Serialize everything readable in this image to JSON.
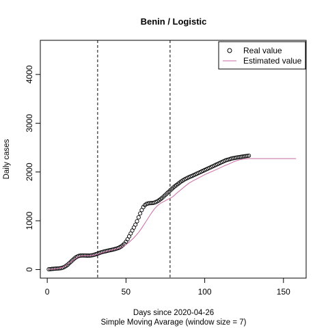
{
  "chart_data": {
    "type": "scatter",
    "title": "Benin / Logistic",
    "xlabel": "Days since 2020-04-26",
    "subtitle": "Simple Moving Avarage (window size = 7)",
    "ylabel": "Daily cases",
    "xlim": [
      -4.4,
      164.4
    ],
    "ylim": [
      -176,
      4700
    ],
    "x_ticks": [
      0,
      50,
      100,
      150
    ],
    "y_ticks": [
      0,
      1000,
      2000,
      3000,
      4000
    ],
    "vlines": [
      32,
      78
    ],
    "legend": {
      "position": "top-right",
      "entries": [
        {
          "label": "Real value",
          "symbol": "circle"
        },
        {
          "label": "Estimated value",
          "symbol": "line",
          "color": "#c86aa4"
        }
      ]
    },
    "series": [
      {
        "name": "Real value",
        "kind": "points",
        "x": [
          1,
          2,
          3,
          4,
          5,
          6,
          7,
          8,
          9,
          10,
          11,
          12,
          13,
          14,
          15,
          16,
          17,
          18,
          19,
          20,
          21,
          22,
          23,
          24,
          25,
          26,
          27,
          28,
          29,
          30,
          31,
          32,
          33,
          34,
          35,
          36,
          37,
          38,
          39,
          40,
          41,
          42,
          43,
          44,
          45,
          46,
          47,
          48,
          49,
          50,
          51,
          52,
          53,
          54,
          55,
          56,
          57,
          58,
          59,
          60,
          61,
          62,
          63,
          64,
          65,
          66,
          67,
          68,
          69,
          70,
          71,
          72,
          73,
          74,
          75,
          76,
          77,
          78,
          79,
          80,
          81,
          82,
          83,
          84,
          85,
          86,
          87,
          88,
          89,
          90,
          91,
          92,
          93,
          94,
          95,
          96,
          97,
          98,
          99,
          100,
          101,
          102,
          103,
          104,
          105,
          106,
          107,
          108,
          109,
          110,
          111,
          112,
          113,
          114,
          115,
          116,
          117,
          118,
          119,
          120,
          121,
          122,
          123,
          124,
          125,
          126,
          127,
          128
        ],
        "y": [
          5,
          8,
          12,
          15,
          18,
          20,
          22,
          25,
          30,
          40,
          55,
          75,
          100,
          130,
          160,
          190,
          220,
          245,
          265,
          278,
          285,
          288,
          288,
          287,
          286,
          285,
          286,
          290,
          295,
          305,
          315,
          325,
          338,
          350,
          360,
          368,
          375,
          382,
          390,
          398,
          405,
          412,
          420,
          430,
          440,
          455,
          475,
          500,
          530,
          570,
          620,
          680,
          740,
          800,
          860,
          920,
          990,
          1070,
          1150,
          1220,
          1280,
          1320,
          1345,
          1355,
          1360,
          1362,
          1365,
          1372,
          1385,
          1400,
          1420,
          1445,
          1470,
          1500,
          1530,
          1560,
          1590,
          1620,
          1650,
          1680,
          1705,
          1730,
          1755,
          1780,
          1805,
          1825,
          1845,
          1862,
          1878,
          1893,
          1907,
          1920,
          1935,
          1950,
          1965,
          1980,
          1995,
          2010,
          2025,
          2040,
          2055,
          2070,
          2085,
          2100,
          2115,
          2130,
          2145,
          2160,
          2175,
          2190,
          2205,
          2220,
          2235,
          2245,
          2255,
          2265,
          2275,
          2282,
          2288,
          2295,
          2300,
          2305,
          2310,
          2315,
          2320,
          2325,
          2330,
          2335
        ]
      },
      {
        "name": "Estimated value",
        "kind": "line",
        "color": "#c86aa4",
        "x": [
          1,
          5,
          10,
          15,
          18,
          20,
          22,
          25,
          28,
          30,
          32,
          35,
          38,
          40,
          42,
          45,
          48,
          50,
          52,
          55,
          58,
          60,
          62,
          64,
          66,
          68,
          70,
          72,
          74,
          76,
          78,
          80,
          82,
          85,
          88,
          90,
          92,
          95,
          98,
          100,
          102,
          105,
          108,
          110,
          112,
          115,
          118,
          120,
          122,
          125,
          128,
          130,
          135,
          140,
          145,
          150,
          155,
          158
        ],
        "y": [
          0,
          10,
          50,
          160,
          230,
          265,
          280,
          285,
          287,
          295,
          315,
          345,
          375,
          395,
          410,
          430,
          470,
          510,
          560,
          650,
          760,
          850,
          950,
          1050,
          1150,
          1240,
          1310,
          1360,
          1395,
          1430,
          1460,
          1500,
          1560,
          1640,
          1720,
          1770,
          1810,
          1860,
          1910,
          1945,
          1975,
          2015,
          2060,
          2090,
          2120,
          2160,
          2205,
          2230,
          2250,
          2265,
          2275,
          2275,
          2275,
          2275,
          2275,
          2275,
          2275,
          2275
        ]
      }
    ]
  }
}
